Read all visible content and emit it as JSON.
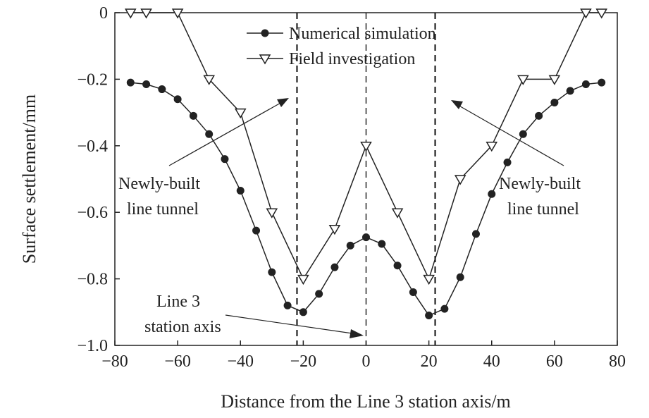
{
  "chart_data": {
    "type": "line",
    "xlabel": "Distance from the Line 3 station axis/m",
    "ylabel": "Surface settlement/mm",
    "xlim": [
      -80,
      80
    ],
    "ylim": [
      -1.0,
      0
    ],
    "xticks": [
      -80,
      -60,
      -40,
      -20,
      0,
      20,
      40,
      60,
      80
    ],
    "xtick_labels": [
      "−80",
      "−60",
      "−40",
      "−20",
      "0",
      "20",
      "40",
      "60",
      "80"
    ],
    "yticks": [
      0,
      -0.2,
      -0.4,
      -0.6,
      -0.8,
      -1.0
    ],
    "ytick_labels": [
      "0",
      "−0.2",
      "−0.4",
      "−0.6",
      "−0.8",
      "−1.0"
    ],
    "grid": false,
    "legend_position": "top-center",
    "series": [
      {
        "name": "Numerical simulation",
        "marker": "filled-circle",
        "color": "#222222",
        "x": [
          -75,
          -70,
          -65,
          -60,
          -55,
          -50,
          -45,
          -40,
          -35,
          -30,
          -25,
          -20,
          -15,
          -10,
          -5,
          0,
          5,
          10,
          15,
          20,
          25,
          30,
          35,
          40,
          45,
          50,
          55,
          60,
          65,
          70,
          75
        ],
        "y": [
          -0.21,
          -0.215,
          -0.23,
          -0.26,
          -0.31,
          -0.365,
          -0.44,
          -0.535,
          -0.655,
          -0.78,
          -0.88,
          -0.9,
          -0.845,
          -0.765,
          -0.7,
          -0.675,
          -0.695,
          -0.76,
          -0.84,
          -0.91,
          -0.89,
          -0.795,
          -0.665,
          -0.545,
          -0.45,
          -0.365,
          -0.31,
          -0.27,
          -0.235,
          -0.215,
          -0.21
        ]
      },
      {
        "name": "Field investigation",
        "marker": "open-triangle-down",
        "color": "#222222",
        "x": [
          -75,
          -70,
          -60,
          -50,
          -40,
          -30,
          -20,
          -10,
          0,
          10,
          20,
          30,
          40,
          50,
          60,
          70,
          75
        ],
        "y": [
          0,
          0,
          0,
          -0.2,
          -0.3,
          -0.6,
          -0.8,
          -0.65,
          -0.4,
          -0.6,
          -0.8,
          -0.5,
          -0.4,
          -0.2,
          -0.2,
          0,
          0
        ]
      }
    ],
    "vlines": [
      -22,
      0,
      22
    ],
    "annotations": [
      {
        "text_lines": [
          "Newly-built",
          "line tunnel"
        ],
        "target_x": -22
      },
      {
        "text_lines": [
          "Newly-built",
          "line tunnel"
        ],
        "target_x": 22
      },
      {
        "text_lines": [
          "Line 3",
          "station axis"
        ],
        "target_x": 0
      }
    ]
  }
}
